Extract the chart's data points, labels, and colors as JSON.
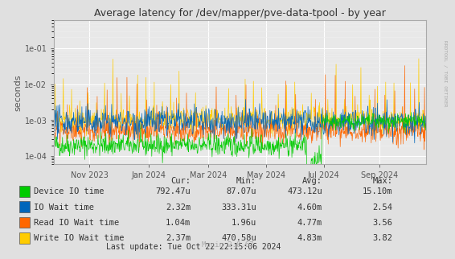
{
  "title": "Average latency for /dev/mapper/pve-data-tpool - by year",
  "ylabel": "seconds",
  "right_label": "RRDTOOL / TOBI OETIKER",
  "background_color": "#e0e0e0",
  "plot_bg_color": "#e8e8e8",
  "grid_major_color": "#ffffff",
  "grid_minor_color": "#f0f0f0",
  "ylim_min": 6e-05,
  "ylim_max": 0.6,
  "series": [
    {
      "name": "Device IO time",
      "color": "#00cc00"
    },
    {
      "name": "IO Wait time",
      "color": "#0066bb"
    },
    {
      "name": "Read IO Wait time",
      "color": "#ff6600"
    },
    {
      "name": "Write IO Wait time",
      "color": "#ffcc00"
    }
  ],
  "legend": [
    {
      "label": "Device IO time",
      "color": "#00cc00",
      "cur": "792.47u",
      "min": "87.07u",
      "avg": "473.12u",
      "max": "15.10m"
    },
    {
      "label": "IO Wait time",
      "color": "#0066bb",
      "cur": "2.32m",
      "min": "333.31u",
      "avg": "4.60m",
      "max": "2.54"
    },
    {
      "label": "Read IO Wait time",
      "color": "#ff6600",
      "cur": "1.04m",
      "min": "1.96u",
      "avg": "4.77m",
      "max": "3.56"
    },
    {
      "label": "Write IO Wait time",
      "color": "#ffcc00",
      "cur": "2.37m",
      "min": "470.58u",
      "avg": "4.83m",
      "max": "3.82"
    }
  ],
  "last_update": "Last update: Tue Oct 22 22:15:06 2024",
  "munin_version": "Munin 2.0.67",
  "xtick_labels": [
    "Nov 2023",
    "Jan 2024",
    "Mar 2024",
    "May 2024",
    "Jul 2024",
    "Sep 2024"
  ],
  "xtick_positions": [
    0.095,
    0.255,
    0.415,
    0.57,
    0.725,
    0.875
  ]
}
